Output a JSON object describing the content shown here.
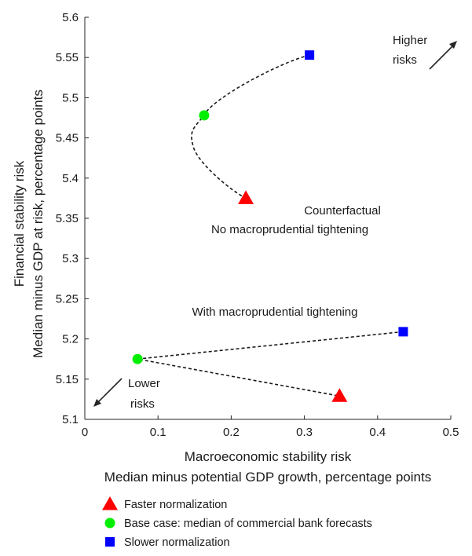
{
  "chart_data": {
    "type": "scatter",
    "xlabel": "Macroeconomic stability risk",
    "xlabel2": "Median minus potential GDP growth, percentage points",
    "ylabel": "Financial stability risk",
    "ylabel2": "Median minus GDP at risk, percentage points",
    "xlim": [
      0,
      0.5
    ],
    "ylim": [
      5.1,
      5.6
    ],
    "xticks": [
      0,
      0.1,
      0.2,
      0.3,
      0.4,
      0.5
    ],
    "xtick_labels": [
      "0",
      "0.1",
      "0.2",
      "0.3",
      "0.4",
      "0.5"
    ],
    "yticks": [
      5.1,
      5.15,
      5.2,
      5.25,
      5.3,
      5.35,
      5.4,
      5.45,
      5.5,
      5.55,
      5.6
    ],
    "ytick_labels": [
      "5.1",
      "5.15",
      "5.2",
      "5.25",
      "5.3",
      "5.35",
      "5.4",
      "5.45",
      "5.5",
      "5.55",
      "5.6"
    ],
    "grid": false,
    "legend_position": "bottom",
    "series": [
      {
        "name": "Faster normalization",
        "marker": "triangle",
        "color": "#ff0000",
        "points": [
          {
            "x": 0.22,
            "y": 5.375
          },
          {
            "x": 0.348,
            "y": 5.129
          }
        ]
      },
      {
        "name": "Base case: median of commercial bank forecasts",
        "marker": "circle",
        "color": "#00ee00",
        "points": [
          {
            "x": 0.163,
            "y": 5.478
          },
          {
            "x": 0.072,
            "y": 5.175
          }
        ]
      },
      {
        "name": "Slower normalization",
        "marker": "square",
        "color": "#0000ff",
        "points": [
          {
            "x": 0.307,
            "y": 5.553
          },
          {
            "x": 0.435,
            "y": 5.209
          }
        ]
      }
    ],
    "paths": [
      {
        "group": "counterfactual",
        "points": [
          [
            0.307,
            5.553
          ],
          [
            0.163,
            5.478
          ],
          [
            0.148,
            5.44
          ],
          [
            0.22,
            5.375
          ]
        ]
      },
      {
        "group": "macroprudential",
        "points": [
          [
            0.435,
            5.209
          ],
          [
            0.072,
            5.175
          ],
          [
            0.348,
            5.129
          ]
        ]
      }
    ],
    "annotations": {
      "counterfactual_line1": "Counterfactual",
      "counterfactual_line2": "No macroprudential tightening",
      "macroprudential": "With macroprudential tightening",
      "higher_risks_line1": "Higher",
      "higher_risks_line2": "risks",
      "lower_risks_line1": "Lower",
      "lower_risks_line2": "risks"
    }
  }
}
